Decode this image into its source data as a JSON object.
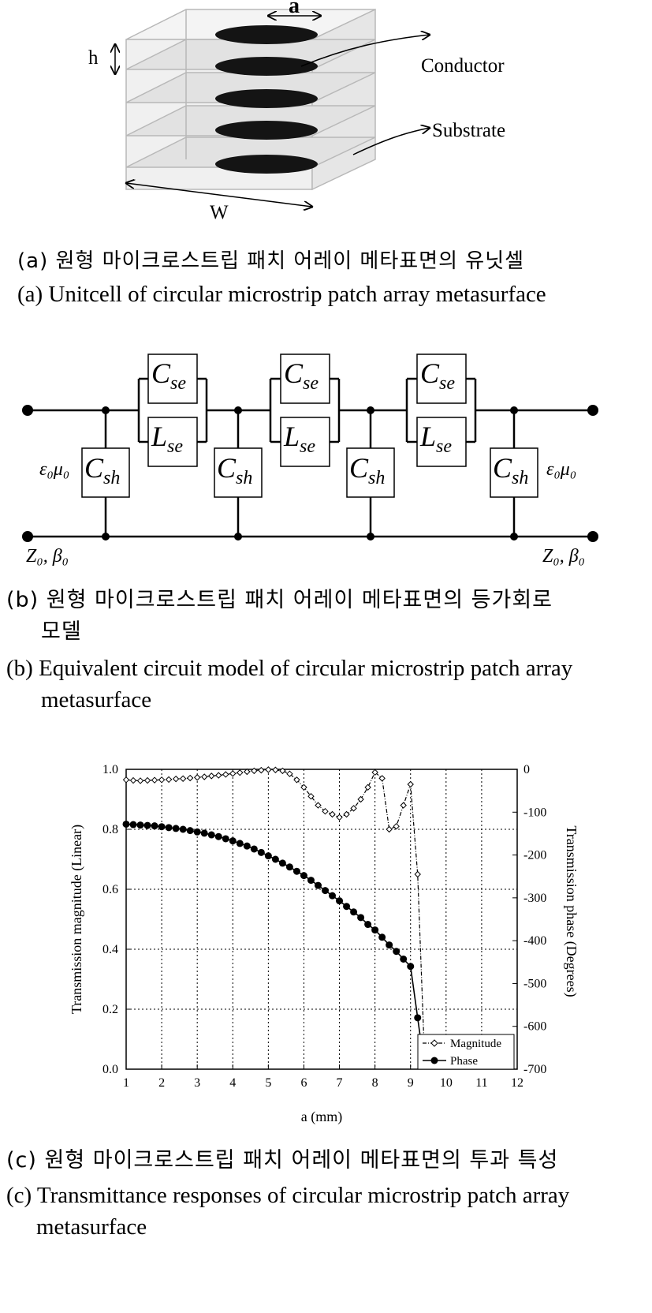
{
  "figure_a": {
    "dim_a": "a",
    "dim_h": "h",
    "dim_w": "W",
    "label_conductor": "Conductor",
    "label_substrate": "Substrate",
    "caption_kr": "(a) 원형 마이크로스트립 패치 어레이 메타표면의 유닛셀",
    "caption_en": "(a) Unitcell of circular microstrip patch array metasurface"
  },
  "figure_b": {
    "cse": "C",
    "cse_sub": "se",
    "lse": "L",
    "lse_sub": "se",
    "csh": "C",
    "csh_sub": "sh",
    "eps_left": "ε₀μ₀",
    "eps_right": "ε₀μ₀",
    "z_left": "Z₀, β₀",
    "z_right": "Z₀, β₀",
    "caption_kr_line1": "(b) 원형 마이크로스트립 패치 어레이 메타표면의 등가회로",
    "caption_kr_line2": "모델",
    "caption_en_line1": "(b) Equivalent circuit model of circular microstrip patch array",
    "caption_en_line2": "metasurface"
  },
  "figure_c": {
    "caption_kr": "(c) 원형 마이크로스트립 패치 어레이 메타표면의 투과 특성",
    "caption_en_line1": "(c) Transmittance responses of circular microstrip patch array",
    "caption_en_line2": "metasurface"
  },
  "chart_data": {
    "type": "line",
    "xlabel": "a (mm)",
    "ylabel": "Transmission magnitude (Linear)",
    "y2label": "Transmission phase (Degrees)",
    "xlim": [
      1,
      12
    ],
    "ylim": [
      0,
      1
    ],
    "y2lim": [
      -700,
      0
    ],
    "xticks": [
      "1",
      "2",
      "3",
      "4",
      "5",
      "6",
      "7",
      "8",
      "9",
      "10",
      "11",
      "12"
    ],
    "yticks": [
      "0.0",
      "0.2",
      "0.4",
      "0.6",
      "0.8",
      "1.0"
    ],
    "y2ticks": [
      "0",
      "-100",
      "-200",
      "-300",
      "-400",
      "-500",
      "-600",
      "-700"
    ],
    "grid": true,
    "legend_position": "bottom-right",
    "series": [
      {
        "name": "Magnitude",
        "axis": "left",
        "x": [
          1.0,
          1.2,
          1.4,
          1.6,
          1.8,
          2.0,
          2.2,
          2.4,
          2.6,
          2.8,
          3.0,
          3.2,
          3.4,
          3.6,
          3.8,
          4.0,
          4.2,
          4.4,
          4.6,
          4.8,
          5.0,
          5.2,
          5.4,
          5.6,
          5.8,
          6.0,
          6.2,
          6.4,
          6.6,
          6.8,
          7.0,
          7.2,
          7.4,
          7.6,
          7.8,
          8.0,
          8.2,
          8.4,
          8.6,
          8.8,
          9.0,
          9.2,
          9.4
        ],
        "y": [
          0.965,
          0.963,
          0.962,
          0.963,
          0.964,
          0.965,
          0.966,
          0.968,
          0.969,
          0.971,
          0.973,
          0.975,
          0.978,
          0.98,
          0.983,
          0.986,
          0.989,
          0.992,
          0.995,
          0.997,
          0.999,
          0.998,
          0.995,
          0.985,
          0.965,
          0.94,
          0.91,
          0.88,
          0.86,
          0.85,
          0.84,
          0.85,
          0.87,
          0.9,
          0.94,
          0.99,
          0.97,
          0.8,
          0.81,
          0.88,
          0.95,
          0.65,
          0.02
        ]
      },
      {
        "name": "Phase",
        "axis": "right",
        "x": [
          1.0,
          1.2,
          1.4,
          1.6,
          1.8,
          2.0,
          2.2,
          2.4,
          2.6,
          2.8,
          3.0,
          3.2,
          3.4,
          3.6,
          3.8,
          4.0,
          4.2,
          4.4,
          4.6,
          4.8,
          5.0,
          5.2,
          5.4,
          5.6,
          5.8,
          6.0,
          6.2,
          6.4,
          6.6,
          6.8,
          7.0,
          7.2,
          7.4,
          7.6,
          7.8,
          8.0,
          8.2,
          8.4,
          8.6,
          8.8,
          9.0,
          9.2,
          9.4
        ],
        "y": [
          -128,
          -129,
          -130,
          -131,
          -132,
          -134,
          -136,
          -138,
          -140,
          -143,
          -146,
          -149,
          -153,
          -157,
          -162,
          -167,
          -173,
          -179,
          -186,
          -194,
          -202,
          -210,
          -219,
          -228,
          -238,
          -248,
          -259,
          -271,
          -283,
          -295,
          -307,
          -320,
          -333,
          -346,
          -362,
          -375,
          -392,
          -410,
          -425,
          -443,
          -460,
          -580,
          -700
        ]
      }
    ]
  }
}
